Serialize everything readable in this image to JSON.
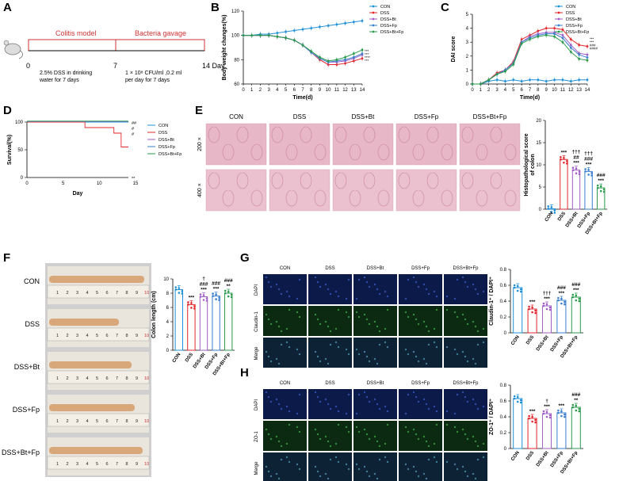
{
  "panels": [
    "A",
    "B",
    "C",
    "D",
    "E",
    "F",
    "G",
    "H"
  ],
  "groups": [
    "CON",
    "DSS",
    "DSS+Bt",
    "DSS+Fp",
    "DSS+Bt+Fp"
  ],
  "colors": {
    "CON": "#1e90d8",
    "DSS": "#e3262b",
    "DSS+Bt": "#a05ec6",
    "DSS+Fp": "#3a7fd0",
    "DSS+Bt+Fp": "#2a9a4c"
  },
  "panelA": {
    "phase1": "Colitis model",
    "phase2": "Bacteria gavage",
    "d0": "0",
    "d7": "7",
    "d14": "14 Day",
    "desc1a": "2.5% DSS in drinking",
    "desc1b": "water for 7 days",
    "desc2a": "1 × 10⁸ CFU/ml ,0.2 ml",
    "desc2b": "per day  for 7 days"
  },
  "panelD": {
    "ylabel": "Survival(%)",
    "xlabel": "Day",
    "marks": [
      "##",
      "#",
      "#",
      "**"
    ]
  },
  "panelE": {
    "cols": [
      "CON",
      "DSS",
      "DSS+Bt",
      "DSS+Fp",
      "DSS+Bt+Fp"
    ],
    "rows": [
      "200 ×",
      "400 ×"
    ],
    "ylabel1": "Histopathological score",
    "ylabel2": "of colon"
  },
  "panelF": {
    "rows": [
      "CON",
      "DSS",
      "DSS+Bt",
      "DSS+Fp",
      "DSS+Bt+Fp"
    ],
    "ylabel": "Colon length (cm)"
  },
  "panelG": {
    "cols": [
      "CON",
      "DSS",
      "DSS+Bt",
      "DSS+Fp",
      "DSS+Bt+Fp"
    ],
    "rows": [
      "DAPI",
      "Claudin-1",
      "Merge"
    ],
    "ylabel": "Claudin-1⁺ / DAPI⁺"
  },
  "panelH": {
    "cols": [
      "CON",
      "DSS",
      "DSS+Bt",
      "DSS+Fp",
      "DSS+Bt+Fp"
    ],
    "rows": [
      "DAPI",
      "ZO-1",
      "Merge"
    ],
    "ylabel": "ZO-1⁺ / DAPI⁺"
  },
  "chart_data": [
    {
      "id": "B",
      "type": "line",
      "title": "",
      "xlabel": "Time(d)",
      "ylabel": "Body weight changes(%)",
      "x": [
        0,
        1,
        2,
        3,
        4,
        5,
        6,
        7,
        8,
        9,
        10,
        11,
        12,
        13,
        14
      ],
      "xlim": [
        0,
        14
      ],
      "ylim": [
        60,
        120
      ],
      "yticks": [
        60,
        80,
        100,
        120
      ],
      "series": [
        {
          "name": "CON",
          "values": [
            100,
            100,
            101,
            101,
            102,
            103,
            104,
            105,
            106,
            107,
            108,
            109,
            110,
            111,
            112
          ]
        },
        {
          "name": "DSS",
          "values": [
            100,
            100,
            100,
            100,
            99,
            98,
            96,
            92,
            86,
            80,
            76,
            76,
            77,
            79,
            81
          ]
        },
        {
          "name": "DSS+Bt",
          "values": [
            100,
            100,
            100,
            100,
            99,
            98,
            96,
            92,
            86,
            81,
            78,
            78,
            79,
            81,
            84
          ]
        },
        {
          "name": "DSS+Fp",
          "values": [
            100,
            100,
            100,
            100,
            99,
            98,
            96,
            92,
            86,
            81,
            78,
            79,
            80,
            82,
            85
          ]
        },
        {
          "name": "DSS+Bt+Fp",
          "values": [
            100,
            100,
            100,
            100,
            99,
            98,
            96,
            92,
            87,
            82,
            79,
            80,
            82,
            85,
            88
          ]
        }
      ],
      "annotations": [
        "***",
        "***",
        "****",
        "***"
      ]
    },
    {
      "id": "C",
      "type": "line",
      "title": "",
      "xlabel": "Time(d)",
      "ylabel": "DAI score",
      "x": [
        0,
        1,
        2,
        3,
        4,
        5,
        6,
        7,
        8,
        9,
        10,
        11,
        12,
        13,
        14
      ],
      "xlim": [
        0,
        14
      ],
      "ylim": [
        0,
        5
      ],
      "yticks": [
        0,
        1,
        2,
        3,
        4,
        5
      ],
      "series": [
        {
          "name": "CON",
          "values": [
            0,
            0,
            0.2,
            0.3,
            0.2,
            0.3,
            0.2,
            0.3,
            0.3,
            0.2,
            0.3,
            0.3,
            0.2,
            0.3,
            0.3
          ]
        },
        {
          "name": "DSS",
          "values": [
            0,
            0,
            0.3,
            0.8,
            1.0,
            1.6,
            3.2,
            3.5,
            3.8,
            4.0,
            4.0,
            3.9,
            3.2,
            2.8,
            2.7
          ]
        },
        {
          "name": "DSS+Bt",
          "values": [
            0,
            0,
            0.3,
            0.7,
            1.0,
            1.5,
            3.0,
            3.4,
            3.6,
            3.7,
            3.7,
            3.5,
            2.8,
            2.2,
            2.1
          ]
        },
        {
          "name": "DSS+Fp",
          "values": [
            0,
            0,
            0.3,
            0.7,
            1.0,
            1.5,
            3.0,
            3.3,
            3.5,
            3.6,
            3.6,
            3.3,
            2.6,
            2.1,
            1.9
          ]
        },
        {
          "name": "DSS+Bt+Fp",
          "values": [
            0,
            0,
            0.3,
            0.7,
            0.9,
            1.4,
            2.9,
            3.2,
            3.4,
            3.5,
            3.4,
            3.0,
            2.3,
            1.8,
            1.7
          ]
        }
      ],
      "annotations": [
        "***",
        "***",
        "###",
        "####"
      ]
    },
    {
      "id": "D",
      "type": "line",
      "title": "",
      "xlabel": "Day",
      "ylabel": "Survival(%)",
      "xlim": [
        0,
        14
      ],
      "ylim": [
        0,
        100
      ],
      "yticks": [
        0,
        50,
        100
      ],
      "series": [
        {
          "name": "CON",
          "steps": [
            [
              0,
              100
            ],
            [
              14,
              100
            ]
          ]
        },
        {
          "name": "DSS",
          "steps": [
            [
              0,
              100
            ],
            [
              8,
              100
            ],
            [
              8,
              90
            ],
            [
              12,
              90
            ],
            [
              12,
              80
            ],
            [
              13,
              80
            ],
            [
              13,
              55
            ],
            [
              14,
              55
            ]
          ]
        },
        {
          "name": "DSS+Bt",
          "steps": [
            [
              0,
              100
            ],
            [
              14,
              100
            ]
          ]
        },
        {
          "name": "DSS+Fp",
          "steps": [
            [
              0,
              100
            ],
            [
              14,
              100
            ]
          ]
        },
        {
          "name": "DSS+Bt+Fp",
          "steps": [
            [
              0,
              100
            ],
            [
              14,
              100
            ]
          ]
        }
      ]
    },
    {
      "id": "E",
      "type": "bar",
      "title": "",
      "categories": [
        "CON",
        "DSS",
        "DSS+Bt",
        "DSS+Fp",
        "DSS+Bt+Fp"
      ],
      "values": [
        0.1,
        11.2,
        8.8,
        8.5,
        4.8
      ],
      "ylim": [
        0,
        20
      ],
      "yticks": [
        0,
        5,
        10,
        15,
        20
      ],
      "annotations": [
        "",
        "***",
        "†††\n##\n***",
        "†††\n###\n***",
        "###\n***"
      ]
    },
    {
      "id": "F",
      "type": "bar",
      "title": "",
      "categories": [
        "CON",
        "DSS",
        "DSS+Bt",
        "DSS+Fp",
        "DSS+Bt+Fp"
      ],
      "values": [
        8.5,
        6.4,
        7.5,
        7.6,
        8.0
      ],
      "ylim": [
        0,
        10
      ],
      "yticks": [
        0,
        2,
        4,
        6,
        8,
        10
      ],
      "annotations": [
        "",
        "***",
        "†\n###\n***",
        "###\n***",
        "###\n**"
      ]
    },
    {
      "id": "G",
      "type": "bar",
      "title": "",
      "categories": [
        "CON",
        "DSS",
        "DSS+Bt",
        "DSS+Fp",
        "DSS+Bt+Fp"
      ],
      "values": [
        0.57,
        0.3,
        0.34,
        0.41,
        0.45
      ],
      "ylim": [
        0,
        0.8
      ],
      "yticks": [
        0,
        0.2,
        0.4,
        0.6,
        0.8
      ],
      "annotations": [
        "",
        "***",
        "†††\n***",
        "###\n***",
        "###\n***"
      ]
    },
    {
      "id": "H",
      "type": "bar",
      "title": "",
      "categories": [
        "CON",
        "DSS",
        "DSS+Bt",
        "DSS+Fp",
        "DSS+Bt+Fp"
      ],
      "values": [
        0.63,
        0.38,
        0.44,
        0.45,
        0.52
      ],
      "ylim": [
        0,
        0.8
      ],
      "yticks": [
        0,
        0.2,
        0.4,
        0.6,
        0.8
      ],
      "annotations": [
        "",
        "***",
        "†\n***",
        "***",
        "###\n**"
      ]
    }
  ]
}
